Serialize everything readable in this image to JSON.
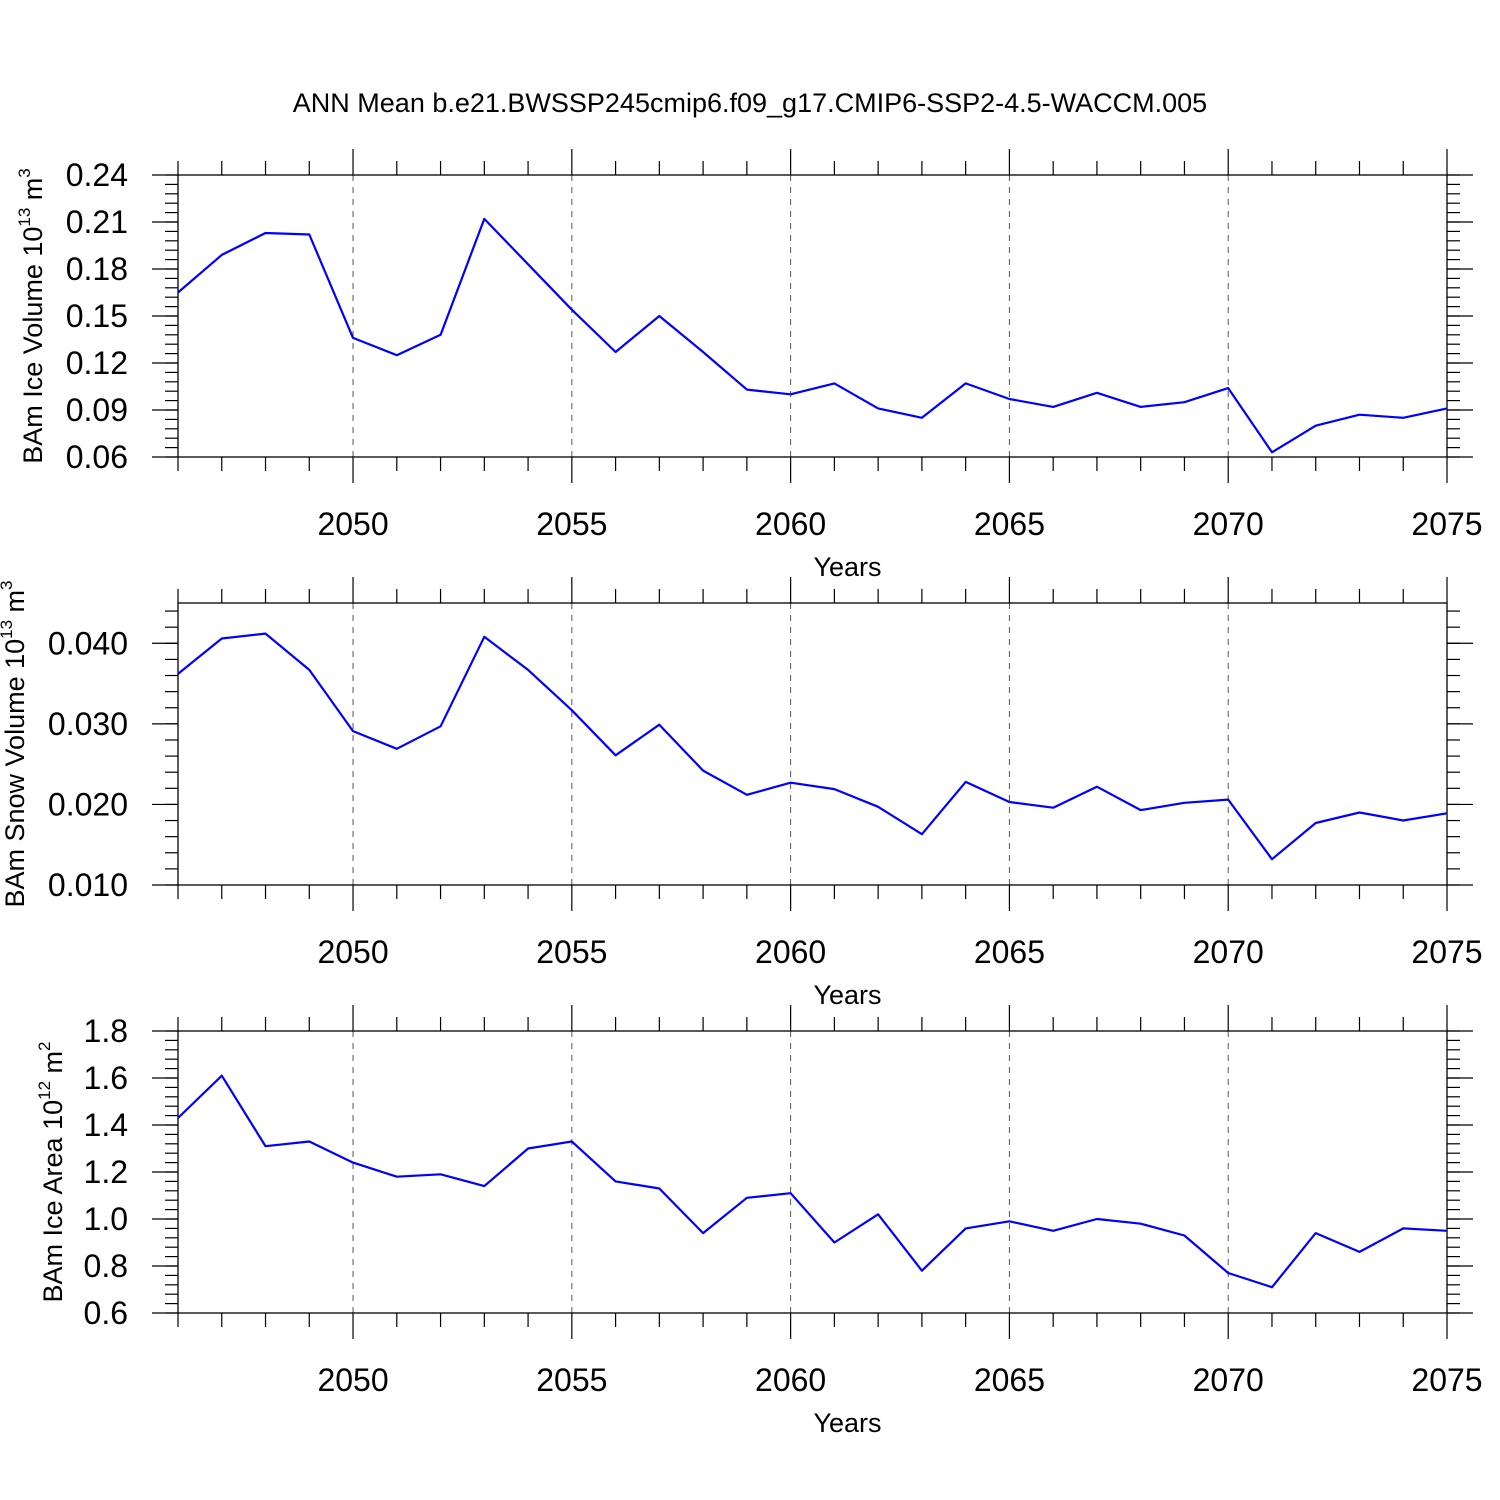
{
  "figure": {
    "title": "ANN Mean b.e21.BWSSP245cmip6.f09_g17.CMIP6-SSP2-4.5-WACCM.005"
  },
  "chart_data": [
    {
      "type": "line",
      "ylabel": "BAm Ice Volume 10",
      "ylabel_exp": "13",
      "ylabel_unit": " m",
      "ylabel_unit_exp": "3",
      "xlabel": "Years",
      "xlim": [
        2046,
        2075
      ],
      "ylim": [
        0.06,
        0.24
      ],
      "yticks": [
        "0.06",
        "0.09",
        "0.12",
        "0.15",
        "0.18",
        "0.21",
        "0.24"
      ],
      "xticks": [
        "2050",
        "2055",
        "2060",
        "2065",
        "2070",
        "2075"
      ],
      "grid": "vertical dashed at labeled years",
      "color": "#0000ff",
      "x": [
        2046,
        2047,
        2048,
        2049,
        2050,
        2051,
        2052,
        2053,
        2054,
        2055,
        2056,
        2057,
        2058,
        2059,
        2060,
        2061,
        2062,
        2063,
        2064,
        2065,
        2066,
        2067,
        2068,
        2069,
        2070,
        2071,
        2072,
        2073,
        2074,
        2075
      ],
      "y": [
        0.165,
        0.189,
        0.203,
        0.202,
        0.136,
        0.125,
        0.138,
        0.212,
        0.183,
        0.154,
        0.127,
        0.15,
        0.127,
        0.103,
        0.1,
        0.107,
        0.091,
        0.085,
        0.107,
        0.097,
        0.092,
        0.101,
        0.092,
        0.095,
        0.104,
        0.063,
        0.08,
        0.087,
        0.085,
        0.091
      ]
    },
    {
      "type": "line",
      "ylabel": "BAm Snow Volume 10",
      "ylabel_exp": "13",
      "ylabel_unit": " m",
      "ylabel_unit_exp": "3",
      "xlabel": "Years",
      "xlim": [
        2046,
        2075
      ],
      "ylim": [
        0.01,
        0.045
      ],
      "yticks": [
        "0.010",
        "0.020",
        "0.030",
        "0.040"
      ],
      "xticks": [
        "2050",
        "2055",
        "2060",
        "2065",
        "2070",
        "2075"
      ],
      "grid": "vertical dashed at labeled years",
      "color": "#0000ff",
      "x": [
        2046,
        2047,
        2048,
        2049,
        2050,
        2051,
        2052,
        2053,
        2054,
        2055,
        2056,
        2057,
        2058,
        2059,
        2060,
        2061,
        2062,
        2063,
        2064,
        2065,
        2066,
        2067,
        2068,
        2069,
        2070,
        2071,
        2072,
        2073,
        2074,
        2075
      ],
      "y": [
        0.0362,
        0.0406,
        0.0412,
        0.0367,
        0.0291,
        0.0269,
        0.0297,
        0.0408,
        0.0367,
        0.0317,
        0.0261,
        0.0299,
        0.0242,
        0.0212,
        0.0227,
        0.0219,
        0.0197,
        0.0163,
        0.0228,
        0.0203,
        0.0196,
        0.0222,
        0.0193,
        0.0202,
        0.0206,
        0.0132,
        0.0177,
        0.019,
        0.018,
        0.0189
      ]
    },
    {
      "type": "line",
      "ylabel": "BAm Ice Area 10",
      "ylabel_exp": "12",
      "ylabel_unit": " m",
      "ylabel_unit_exp": "2",
      "xlabel": "Years",
      "xlim": [
        2046,
        2075
      ],
      "ylim": [
        0.6,
        1.8
      ],
      "yticks": [
        "0.6",
        "0.8",
        "1.0",
        "1.2",
        "1.4",
        "1.6",
        "1.8"
      ],
      "xticks": [
        "2050",
        "2055",
        "2060",
        "2065",
        "2070",
        "2075"
      ],
      "grid": "vertical dashed at labeled years",
      "color": "#0000ff",
      "x": [
        2046,
        2047,
        2048,
        2049,
        2050,
        2051,
        2052,
        2053,
        2054,
        2055,
        2056,
        2057,
        2058,
        2059,
        2060,
        2061,
        2062,
        2063,
        2064,
        2065,
        2066,
        2067,
        2068,
        2069,
        2070,
        2071,
        2072,
        2073,
        2074,
        2075
      ],
      "y": [
        1.43,
        1.61,
        1.31,
        1.33,
        1.24,
        1.18,
        1.19,
        1.14,
        1.3,
        1.33,
        1.16,
        1.13,
        0.94,
        1.09,
        1.11,
        0.9,
        1.02,
        0.78,
        0.96,
        0.99,
        0.95,
        1.0,
        0.98,
        0.93,
        0.77,
        0.71,
        0.94,
        0.86,
        0.96,
        0.95
      ]
    }
  ]
}
